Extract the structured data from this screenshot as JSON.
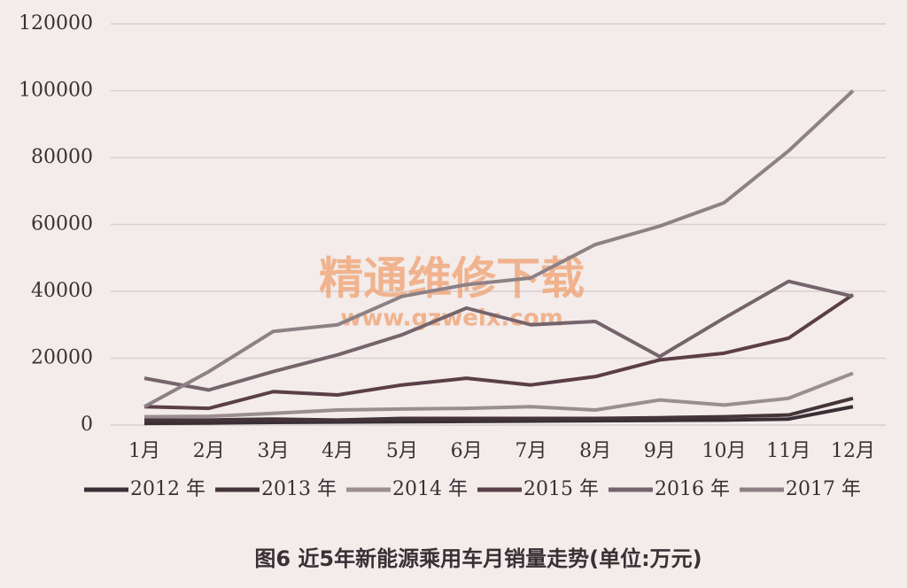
{
  "chart_data": {
    "type": "line",
    "title": "图6  近5年新能源乘用车月销量走势(单位:万元)",
    "annotations": [
      "精通维修下载",
      "www.gzweix.com"
    ],
    "categories": [
      "1月",
      "2月",
      "3月",
      "4月",
      "5月",
      "6月",
      "7月",
      "8月",
      "9月",
      "10月",
      "11月",
      "12月"
    ],
    "series": [
      {
        "name": "2012 年",
        "color": "#3a2f35",
        "values": [
          500,
          600,
          800,
          900,
          1000,
          1100,
          1200,
          1300,
          1400,
          1500,
          1800,
          5500
        ]
      },
      {
        "name": "2013 年",
        "color": "#45353b",
        "values": [
          1500,
          1500,
          1800,
          1500,
          2000,
          2000,
          2000,
          2000,
          2200,
          2500,
          3000,
          8000
        ]
      },
      {
        "name": "2014 年",
        "color": "#9a8e90",
        "values": [
          2500,
          2600,
          3500,
          4500,
          4800,
          5000,
          5500,
          4500,
          7500,
          6000,
          8000,
          15500
        ]
      },
      {
        "name": "2015 年",
        "color": "#5a3e48",
        "values": [
          5500,
          5000,
          10000,
          9000,
          12000,
          14000,
          12000,
          14500,
          19500,
          21500,
          26000,
          39000
        ]
      },
      {
        "name": "2016 年",
        "color": "#75646b",
        "values": [
          14000,
          10500,
          16000,
          21000,
          27000,
          35000,
          30000,
          31000,
          20500,
          32000,
          43000,
          38500
        ]
      },
      {
        "name": "2017 年",
        "color": "#8d8186",
        "values": [
          5500,
          16000,
          28000,
          30000,
          38500,
          42000,
          44000,
          54000,
          59500,
          66500,
          82000,
          100000
        ]
      }
    ],
    "ylim": [
      0,
      120000
    ],
    "yticks": [
      0,
      20000,
      40000,
      60000,
      80000,
      100000,
      120000
    ],
    "grid": true
  }
}
